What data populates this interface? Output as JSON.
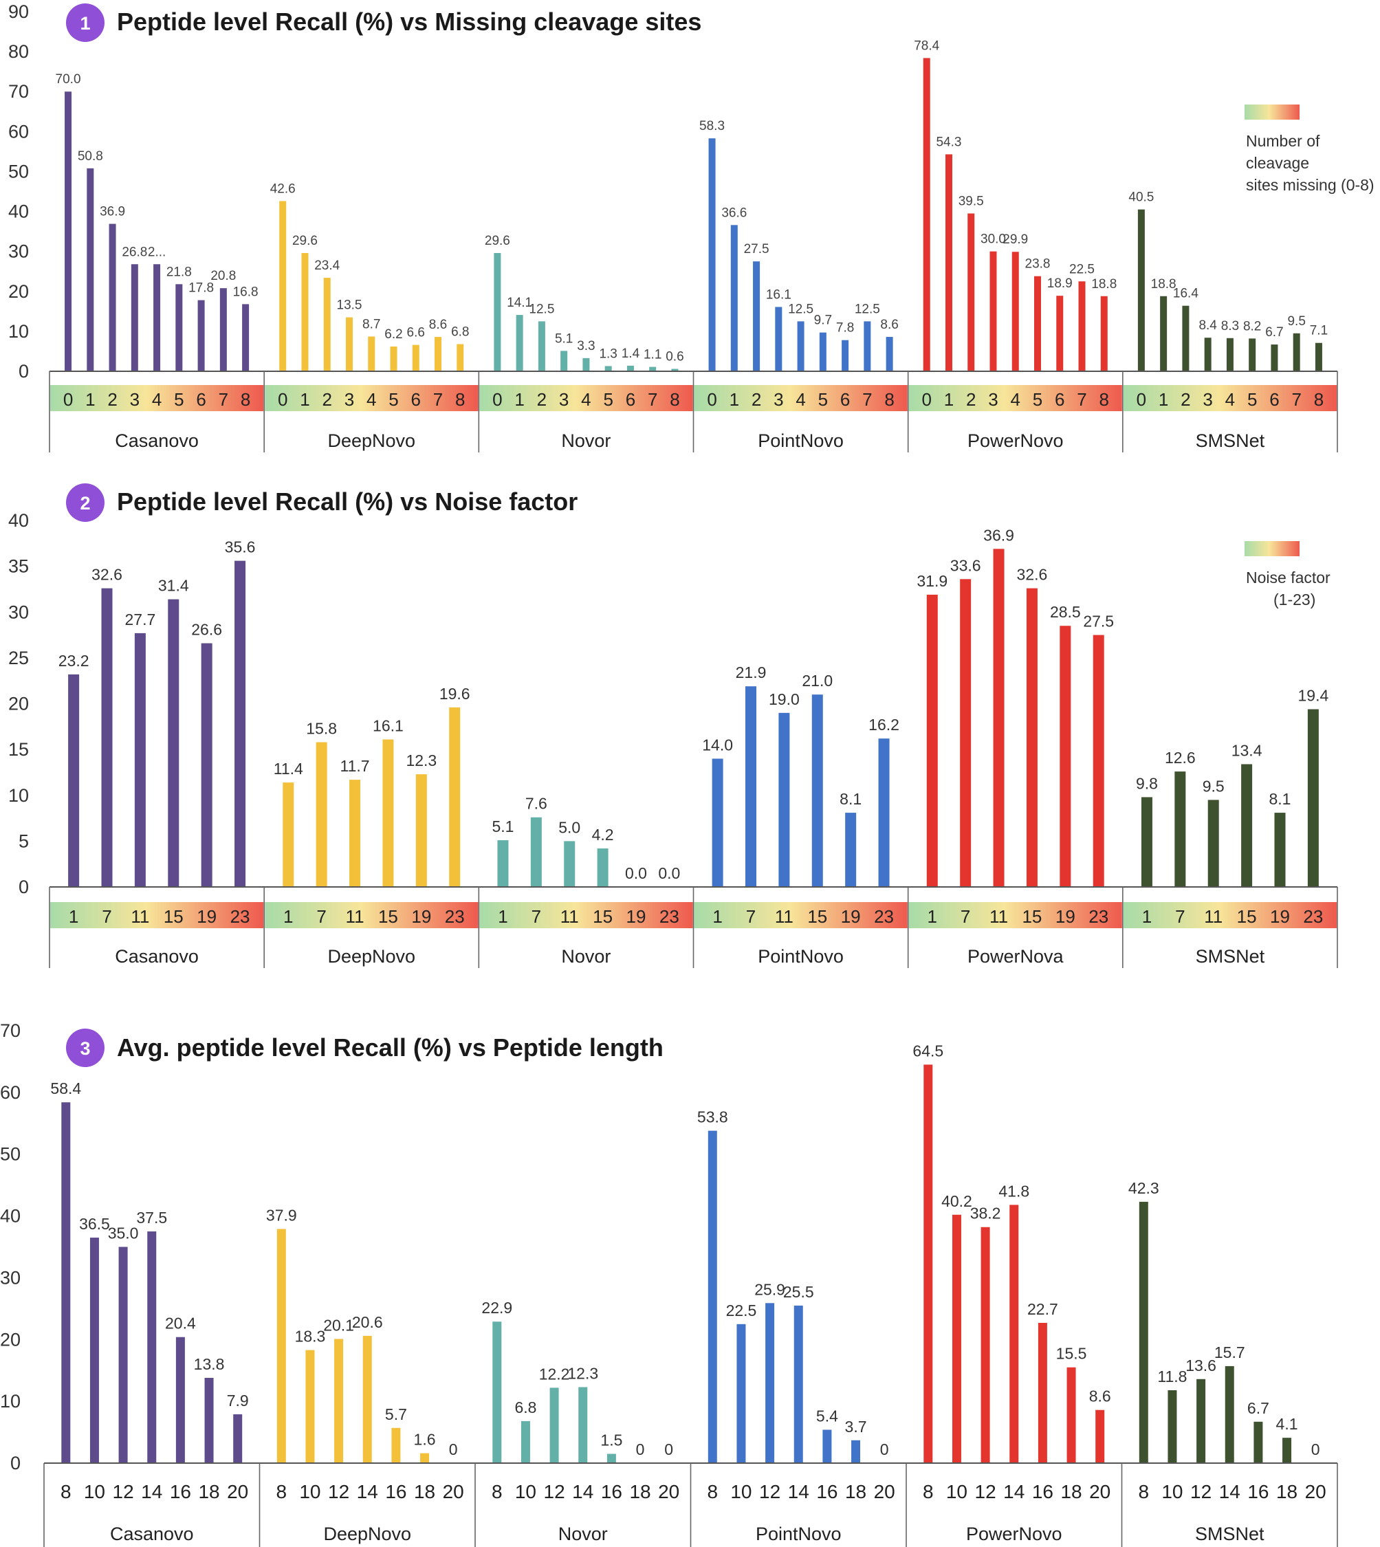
{
  "colors": {
    "casanovo": "#5e4b8b",
    "deepnovo": "#f3c03a",
    "novor": "#63b0a8",
    "pointnovo": "#4174c9",
    "powernovo": "#e3352d",
    "smsnet": "#3e5230",
    "badge": "#8f4fd6",
    "gradient_start": "#a8dba8",
    "gradient_mid": "#f7e59a",
    "gradient_end": "#ee5a4e"
  },
  "chart_data": [
    {
      "type": "bar",
      "panel_number": "1",
      "title": "Peptide level Recall (%) vs Missing cleavage sites",
      "ylabel": "",
      "ylim": [
        0,
        90
      ],
      "yticks": [
        0,
        10,
        20,
        30,
        40,
        50,
        60,
        70,
        80,
        90
      ],
      "legend": {
        "lines": [
          "Number of",
          "cleavage",
          "sites missing (0-8)"
        ],
        "placement": "top-right"
      },
      "groups": [
        {
          "name": "Casanovo",
          "color_key": "casanovo",
          "categories": [
            "0",
            "1",
            "2",
            "3",
            "4",
            "5",
            "6",
            "7",
            "8"
          ],
          "values": [
            70.0,
            50.8,
            36.9,
            26.8,
            26.8,
            21.8,
            17.8,
            20.8,
            16.8
          ],
          "labels": [
            "70.0",
            "50.8",
            "36.9",
            "26.8",
            "2...",
            "21.8",
            "17.8",
            "20.8",
            "16.8"
          ]
        },
        {
          "name": "DeepNovo",
          "color_key": "deepnovo",
          "categories": [
            "0",
            "1",
            "2",
            "3",
            "4",
            "5",
            "6",
            "7",
            "8"
          ],
          "values": [
            42.6,
            29.6,
            23.4,
            13.5,
            8.7,
            6.2,
            6.6,
            8.6,
            6.8
          ],
          "labels": [
            "42.6",
            "29.6",
            "23.4",
            "13.5",
            "8.7",
            "6.2",
            "6.6",
            "8.6",
            "6.8"
          ]
        },
        {
          "name": "Novor",
          "color_key": "novor",
          "categories": [
            "0",
            "1",
            "2",
            "3",
            "4",
            "5",
            "6",
            "7",
            "8"
          ],
          "values": [
            29.6,
            14.1,
            12.5,
            5.1,
            3.3,
            1.3,
            1.4,
            1.1,
            0.6
          ],
          "labels": [
            "29.6",
            "14.1",
            "12.5",
            "5.1",
            "3.3",
            "1.3",
            "1.4",
            "1.1",
            "0.6"
          ]
        },
        {
          "name": "PointNovo",
          "color_key": "pointnovo",
          "categories": [
            "0",
            "1",
            "2",
            "3",
            "4",
            "5",
            "6",
            "7",
            "8"
          ],
          "values": [
            58.3,
            36.6,
            27.5,
            16.1,
            12.5,
            9.7,
            7.8,
            12.5,
            8.6
          ],
          "labels": [
            "58.3",
            "36.6",
            "27.5",
            "16.1",
            "12.5",
            "9.7",
            "7.8",
            "12.5",
            "8.6"
          ]
        },
        {
          "name": "PowerNovo",
          "color_key": "powernovo",
          "categories": [
            "0",
            "1",
            "2",
            "3",
            "4",
            "5",
            "6",
            "7",
            "8"
          ],
          "values": [
            78.4,
            54.3,
            39.5,
            30.0,
            29.9,
            23.8,
            18.9,
            22.5,
            18.8
          ],
          "labels": [
            "78.4",
            "54.3",
            "39.5",
            "30.0",
            "29.9",
            "23.8",
            "18.9",
            "22.5",
            "18.8"
          ]
        },
        {
          "name": "SMSNet",
          "color_key": "smsnet",
          "categories": [
            "0",
            "1",
            "2",
            "3",
            "4",
            "5",
            "6",
            "7",
            "8"
          ],
          "values": [
            40.5,
            18.8,
            16.4,
            8.4,
            8.3,
            8.2,
            6.7,
            9.5,
            7.1
          ],
          "labels": [
            "40.5",
            "18.8",
            "16.4",
            "8.4",
            "8.3",
            "8.2",
            "6.7",
            "9.5",
            "7.1"
          ]
        }
      ]
    },
    {
      "type": "bar",
      "panel_number": "2",
      "title": "Peptide level Recall (%) vs Noise factor",
      "ylabel": "",
      "ylim": [
        0,
        40
      ],
      "yticks": [
        0,
        5,
        10,
        15,
        20,
        25,
        30,
        35,
        40
      ],
      "legend": {
        "lines": [
          "Noise factor",
          "(1-23)"
        ],
        "placement": "top-right"
      },
      "groups": [
        {
          "name": "Casanovo",
          "color_key": "casanovo",
          "categories": [
            "1",
            "7",
            "11",
            "15",
            "19",
            "23"
          ],
          "values": [
            23.2,
            32.6,
            27.7,
            31.4,
            26.6,
            35.6
          ],
          "labels": [
            "23.2",
            "32.6",
            "27.7",
            "31.4",
            "26.6",
            "35.6"
          ]
        },
        {
          "name": "DeepNovo",
          "color_key": "deepnovo",
          "categories": [
            "1",
            "7",
            "11",
            "15",
            "19",
            "23"
          ],
          "values": [
            11.4,
            15.8,
            11.7,
            16.1,
            12.3,
            19.6
          ],
          "labels": [
            "11.4",
            "15.8",
            "11.7",
            "16.1",
            "12.3",
            "19.6"
          ]
        },
        {
          "name": "Novor",
          "color_key": "novor",
          "categories": [
            "1",
            "7",
            "11",
            "15",
            "19",
            "23"
          ],
          "values": [
            5.1,
            7.6,
            5.0,
            4.2,
            0.0,
            0.0
          ],
          "labels": [
            "5.1",
            "7.6",
            "5.0",
            "4.2",
            "0.0",
            "0.0"
          ]
        },
        {
          "name": "PointNovo",
          "color_key": "pointnovo",
          "categories": [
            "1",
            "7",
            "11",
            "15",
            "19",
            "23"
          ],
          "values": [
            14.0,
            21.9,
            19.0,
            21.0,
            8.1,
            16.2
          ],
          "labels": [
            "14.0",
            "21.9",
            "19.0",
            "21.0",
            "8.1",
            "16.2"
          ]
        },
        {
          "name": "PowerNova",
          "color_key": "powernovo",
          "categories": [
            "1",
            "7",
            "11",
            "15",
            "19",
            "23"
          ],
          "values": [
            31.9,
            33.6,
            36.9,
            32.6,
            28.5,
            27.5
          ],
          "labels": [
            "31.9",
            "33.6",
            "36.9",
            "32.6",
            "28.5",
            "27.5"
          ]
        },
        {
          "name": "SMSNet",
          "color_key": "smsnet",
          "categories": [
            "1",
            "7",
            "11",
            "15",
            "19",
            "23"
          ],
          "values": [
            9.8,
            12.6,
            9.5,
            13.4,
            8.1,
            19.4
          ],
          "labels": [
            "9.8",
            "12.6",
            "9.5",
            "13.4",
            "8.1",
            "19.4"
          ]
        }
      ]
    },
    {
      "type": "bar",
      "panel_number": "3",
      "title": "Avg. peptide level Recall (%) vs Peptide length",
      "ylabel": "",
      "ylim": [
        0,
        70
      ],
      "yticks": [
        0,
        10,
        20,
        30,
        40,
        50,
        60,
        70
      ],
      "groups": [
        {
          "name": "Casanovo",
          "color_key": "casanovo",
          "categories": [
            "8",
            "10",
            "12",
            "14",
            "16",
            "18",
            "20"
          ],
          "values": [
            58.4,
            36.5,
            35.0,
            37.5,
            20.4,
            13.8,
            7.9
          ],
          "labels": [
            "58.4",
            "36.5",
            "35.0",
            "37.5",
            "20.4",
            "13.8",
            "7.9"
          ]
        },
        {
          "name": "DeepNovo",
          "color_key": "deepnovo",
          "categories": [
            "8",
            "10",
            "12",
            "14",
            "16",
            "18",
            "20"
          ],
          "values": [
            37.9,
            18.3,
            20.1,
            20.6,
            5.7,
            1.6,
            0
          ],
          "labels": [
            "37.9",
            "18.3",
            "20.1",
            "20.6",
            "5.7",
            "1.6",
            "0"
          ]
        },
        {
          "name": "Novor",
          "color_key": "novor",
          "categories": [
            "8",
            "10",
            "12",
            "14",
            "16",
            "18",
            "20"
          ],
          "values": [
            22.9,
            6.8,
            12.2,
            12.3,
            1.5,
            0,
            0
          ],
          "labels": [
            "22.9",
            "6.8",
            "12.2",
            "12.3",
            "1.5",
            "0",
            "0"
          ]
        },
        {
          "name": "PointNovo",
          "color_key": "pointnovo",
          "categories": [
            "8",
            "10",
            "12",
            "14",
            "16",
            "18",
            "20"
          ],
          "values": [
            53.8,
            22.5,
            25.9,
            25.5,
            5.4,
            3.7,
            0
          ],
          "labels": [
            "53.8",
            "22.5",
            "25.9",
            "25.5",
            "5.4",
            "3.7",
            "0"
          ]
        },
        {
          "name": "PowerNovo",
          "color_key": "powernovo",
          "categories": [
            "8",
            "10",
            "12",
            "14",
            "16",
            "18",
            "20"
          ],
          "values": [
            64.5,
            40.2,
            38.2,
            41.8,
            22.7,
            15.5,
            8.6
          ],
          "labels": [
            "64.5",
            "40.2",
            "38.2",
            "41.8",
            "22.7",
            "15.5",
            "8.6"
          ]
        },
        {
          "name": "SMSNet",
          "color_key": "smsnet",
          "categories": [
            "8",
            "10",
            "12",
            "14",
            "16",
            "18",
            "20"
          ],
          "values": [
            42.3,
            11.8,
            13.6,
            15.7,
            6.7,
            4.1,
            0
          ],
          "labels": [
            "42.3",
            "11.8",
            "13.6",
            "15.7",
            "6.7",
            "4.1",
            "0"
          ]
        }
      ]
    }
  ]
}
